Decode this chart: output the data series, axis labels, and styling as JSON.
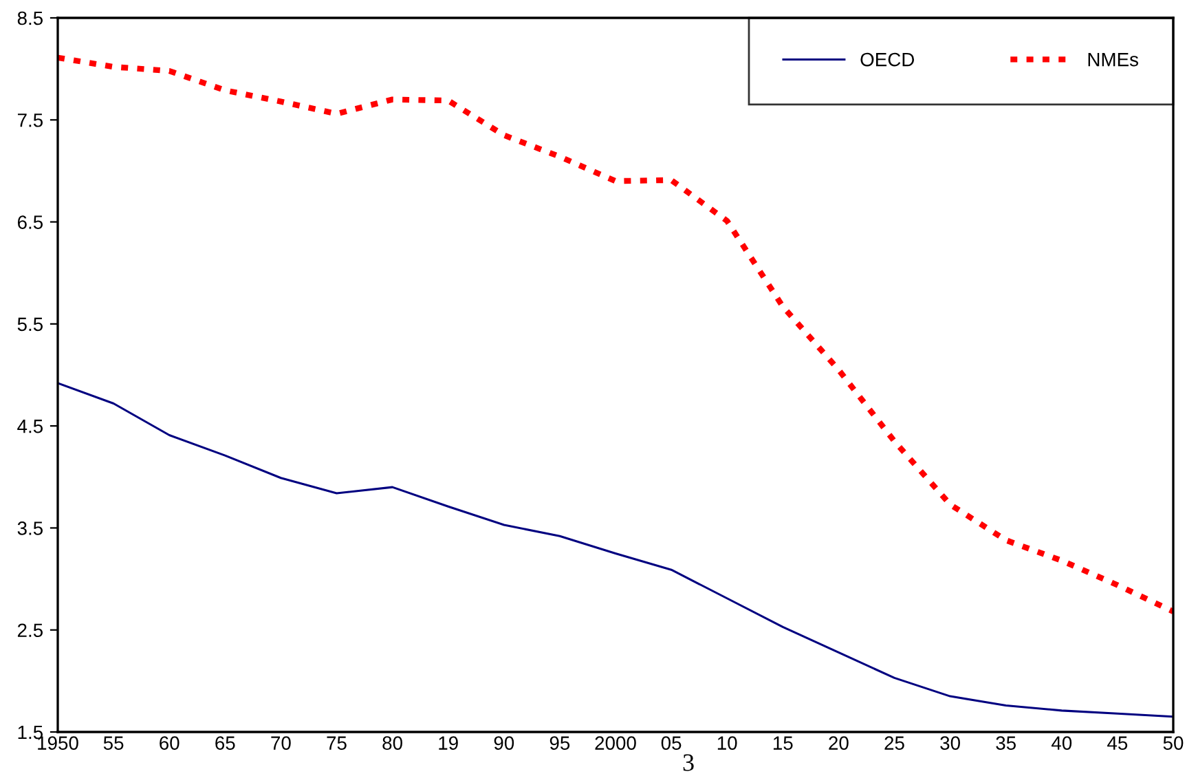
{
  "chart_data": {
    "type": "line",
    "categories": [
      "1950",
      "55",
      "60",
      "65",
      "70",
      "75",
      "80",
      "19",
      "90",
      "95",
      "2000",
      "05",
      "10",
      "15",
      "20",
      "25",
      "30",
      "35",
      "40",
      "45",
      "50"
    ],
    "series": [
      {
        "name": "OECD",
        "color": "#000080",
        "line_style": "solid",
        "values": [
          4.92,
          4.72,
          4.41,
          4.21,
          3.99,
          3.84,
          3.9,
          3.71,
          3.53,
          3.42,
          3.25,
          3.09,
          2.81,
          2.53,
          2.28,
          2.03,
          1.85,
          1.76,
          1.71,
          1.68,
          1.65
        ]
      },
      {
        "name": "NMEs",
        "color": "#ff0000",
        "line_style": "dotted",
        "values": [
          8.11,
          8.02,
          7.98,
          7.79,
          7.68,
          7.56,
          7.7,
          7.69,
          7.35,
          7.14,
          6.9,
          6.91,
          6.51,
          5.67,
          5.05,
          4.35,
          3.73,
          3.38,
          3.18,
          2.94,
          2.68
        ]
      }
    ],
    "ylim": [
      1.5,
      8.5
    ],
    "yticks": [
      1.5,
      2.5,
      3.5,
      4.5,
      5.5,
      6.5,
      7.5,
      8.5
    ],
    "grid": false,
    "legend": "top right",
    "marker": "none",
    "annotations": [
      "3"
    ]
  }
}
